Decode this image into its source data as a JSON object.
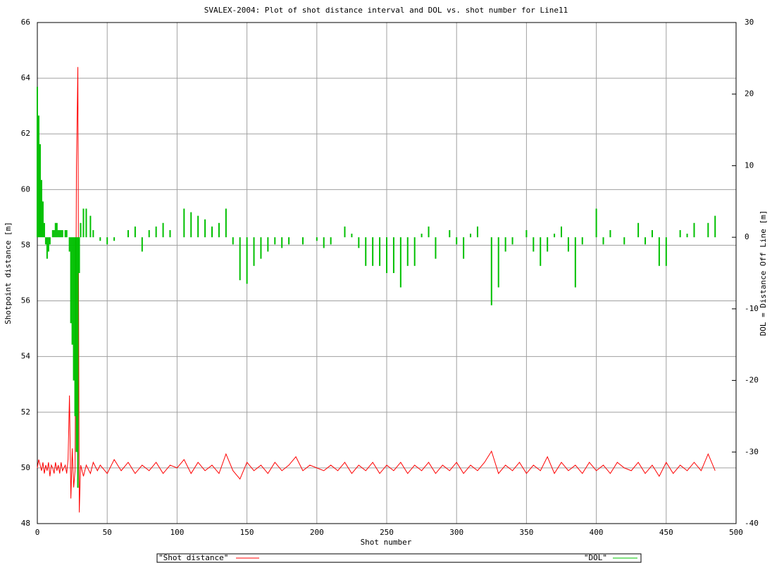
{
  "chart_data": {
    "type": "line",
    "title": "SVALEX-2004: Plot of shot distance interval and DOL vs. shot number for Line11",
    "xlabel": "Shot number",
    "ylabel": "Shotpoint distance [m]",
    "y2label": "DOL = Distance Off Line [m]",
    "grid": true,
    "xlim": [
      0,
      500
    ],
    "xticks": [
      0,
      50,
      100,
      150,
      200,
      250,
      300,
      350,
      400,
      450,
      500
    ],
    "ylim": [
      48,
      66
    ],
    "yticks": [
      48,
      50,
      52,
      54,
      56,
      58,
      60,
      62,
      64,
      66
    ],
    "y2lim": [
      -40,
      30
    ],
    "y2ticks": [
      -40,
      -30,
      -20,
      -10,
      0,
      10,
      20,
      30
    ],
    "x": [
      0,
      1,
      2,
      3,
      4,
      5,
      6,
      7,
      8,
      9,
      10,
      11,
      12,
      13,
      14,
      15,
      16,
      17,
      18,
      19,
      20,
      21,
      22,
      23,
      24,
      25,
      26,
      27,
      28,
      29,
      30,
      31,
      33,
      35,
      38,
      40,
      43,
      45,
      50,
      55,
      60,
      65,
      70,
      75,
      80,
      85,
      90,
      95,
      100,
      105,
      110,
      115,
      120,
      125,
      130,
      135,
      140,
      145,
      150,
      155,
      160,
      165,
      170,
      175,
      180,
      185,
      190,
      195,
      200,
      205,
      210,
      215,
      220,
      225,
      230,
      235,
      240,
      245,
      250,
      255,
      260,
      265,
      270,
      275,
      280,
      285,
      290,
      295,
      300,
      305,
      310,
      315,
      320,
      325,
      330,
      335,
      340,
      345,
      350,
      355,
      360,
      365,
      370,
      375,
      380,
      385,
      390,
      395,
      400,
      405,
      410,
      415,
      420,
      425,
      430,
      435,
      440,
      445,
      450,
      455,
      460,
      465,
      470,
      475,
      480,
      485
    ],
    "series": [
      {
        "name": "\"Shot distance\"",
        "color": "#ff0000",
        "style": "lines",
        "values": [
          50,
          50.3,
          50.1,
          49.9,
          50.2,
          49.8,
          50.1,
          49.9,
          50.2,
          49.7,
          50.1,
          50,
          49.8,
          50.2,
          49.9,
          50.1,
          49.8,
          50.2,
          49.9,
          50,
          50.1,
          49.8,
          50.3,
          52.6,
          48.9,
          50.7,
          49.3,
          49.9,
          60.8,
          64.4,
          48.4,
          50.1,
          49.7,
          50.1,
          49.8,
          50.2,
          49.9,
          50.1,
          49.8,
          50.3,
          49.9,
          50.2,
          49.8,
          50.1,
          49.9,
          50.2,
          49.8,
          50.1,
          50,
          50.3,
          49.8,
          50.2,
          49.9,
          50.1,
          49.8,
          50.5,
          49.9,
          49.6,
          50.2,
          49.9,
          50.1,
          49.8,
          50.2,
          49.9,
          50.1,
          50.4,
          49.9,
          50.1,
          50,
          49.9,
          50.1,
          49.9,
          50.2,
          49.8,
          50.1,
          49.9,
          50.2,
          49.8,
          50.1,
          49.9,
          50.2,
          49.8,
          50.1,
          49.9,
          50.2,
          49.8,
          50.1,
          49.9,
          50.2,
          49.8,
          50.1,
          49.9,
          50.2,
          50.6,
          49.8,
          50.1,
          49.9,
          50.2,
          49.8,
          50.1,
          49.9,
          50.4,
          49.8,
          50.2,
          49.9,
          50.1,
          49.8,
          50.2,
          49.9,
          50.1,
          49.8,
          50.2,
          50,
          49.9,
          50.2,
          49.8,
          50.1,
          49.7,
          50.2,
          49.8,
          50.1,
          49.9,
          50.2,
          49.9,
          50.5,
          49.9
        ]
      },
      {
        "name": "\"DOL\"",
        "color": "#00c000",
        "style": "impulses",
        "axis": "y2",
        "values": [
          21,
          17,
          13,
          8,
          5,
          2,
          -1,
          -3,
          -2,
          -1,
          0,
          1,
          1,
          2,
          2,
          1,
          1,
          1,
          1,
          0,
          1,
          1,
          0,
          -2,
          -12,
          -15,
          -20,
          -25,
          -30,
          -35,
          -5,
          2,
          4,
          4,
          3,
          1,
          0,
          -0.5,
          -1,
          -0.5,
          0,
          1,
          1.5,
          -2,
          1,
          1.5,
          2,
          1,
          0,
          4,
          3.5,
          3,
          2.5,
          1.5,
          2,
          4,
          -1,
          -6,
          -6.5,
          -4,
          -3,
          -2,
          -1,
          -1.5,
          -1,
          0,
          -1,
          0,
          -0.5,
          -1.5,
          -1,
          0,
          1.5,
          0.5,
          -1.5,
          -4,
          -4,
          -4,
          -5,
          -5,
          -7,
          -4,
          -4,
          0.5,
          1.5,
          -3,
          0,
          1,
          -1,
          -3,
          0.5,
          1.5,
          0,
          -9.5,
          -7,
          -2,
          -1,
          0,
          1,
          -2,
          -4,
          -2,
          0.5,
          1.5,
          -2,
          -7,
          -1,
          0,
          4,
          -1,
          1,
          0,
          -1,
          0,
          2,
          -1,
          1,
          -4,
          -4,
          0,
          1,
          0.5,
          2,
          0,
          2,
          3
        ]
      }
    ]
  }
}
